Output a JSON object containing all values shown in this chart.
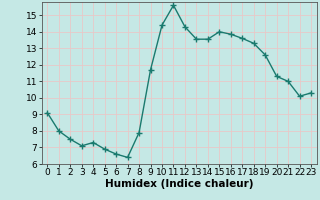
{
  "x": [
    0,
    1,
    2,
    3,
    4,
    5,
    6,
    7,
    8,
    9,
    10,
    11,
    12,
    13,
    14,
    15,
    16,
    17,
    18,
    19,
    20,
    21,
    22,
    23
  ],
  "y": [
    9.1,
    8.0,
    7.5,
    7.1,
    7.3,
    6.9,
    6.6,
    6.4,
    7.9,
    11.7,
    14.4,
    15.6,
    14.3,
    13.55,
    13.55,
    14.0,
    13.85,
    13.6,
    13.3,
    12.6,
    11.3,
    11.0,
    10.1,
    10.3
  ],
  "line_color": "#1a7a6e",
  "marker": "+",
  "marker_size": 4,
  "marker_lw": 1.0,
  "bg_color": "#c5e8e5",
  "grid_color": "#e8c8c8",
  "xlabel": "Humidex (Indice chaleur)",
  "xlim": [
    -0.5,
    23.5
  ],
  "ylim": [
    6,
    15.8
  ],
  "yticks": [
    6,
    7,
    8,
    9,
    10,
    11,
    12,
    13,
    14,
    15
  ],
  "xticks": [
    0,
    1,
    2,
    3,
    4,
    5,
    6,
    7,
    8,
    9,
    10,
    11,
    12,
    13,
    14,
    15,
    16,
    17,
    18,
    19,
    20,
    21,
    22,
    23
  ],
  "linewidth": 1.0,
  "xlabel_fontsize": 7.5,
  "tick_fontsize": 6.5
}
